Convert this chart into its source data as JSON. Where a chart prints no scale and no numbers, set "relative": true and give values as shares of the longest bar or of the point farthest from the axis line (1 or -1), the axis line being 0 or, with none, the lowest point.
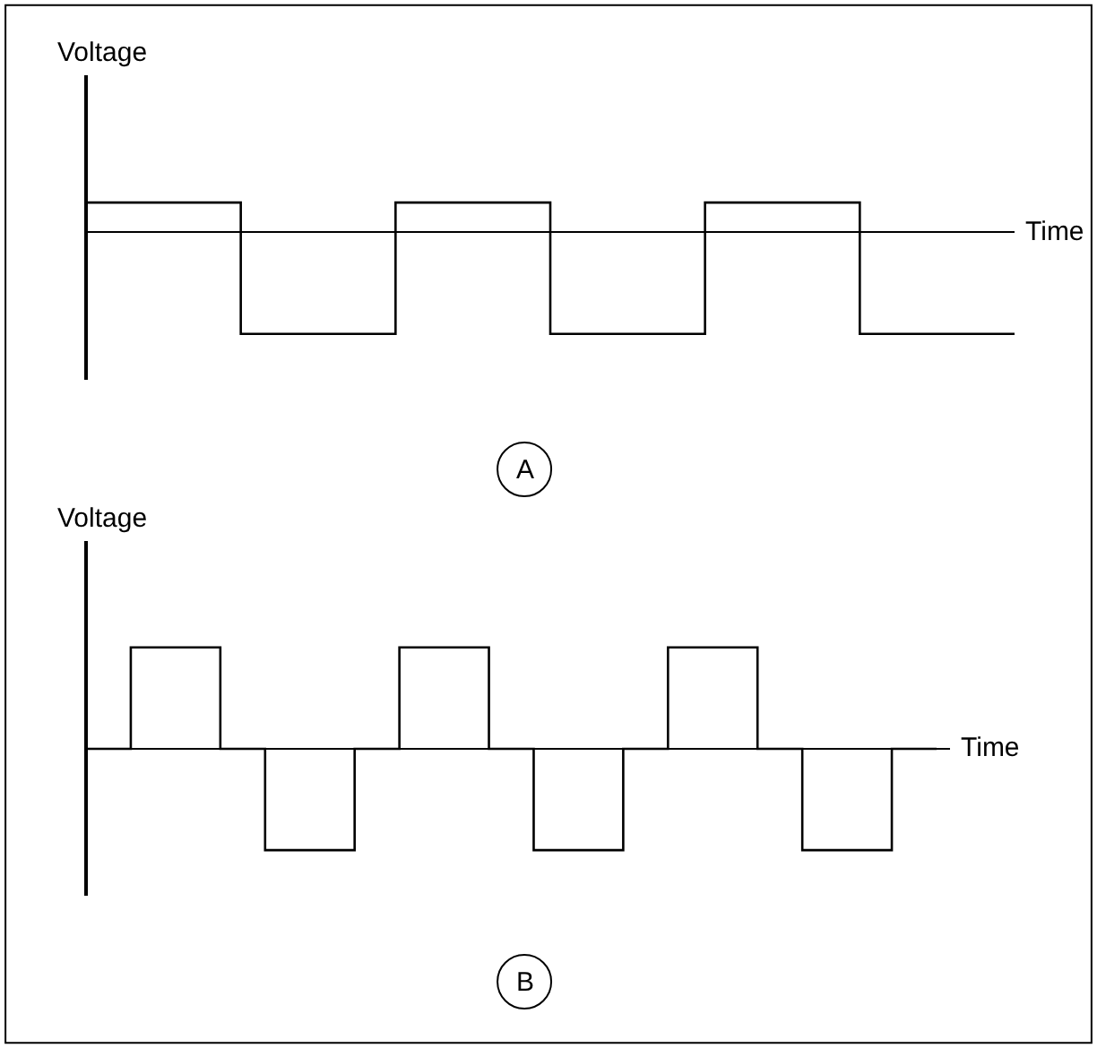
{
  "chart_data": [
    {
      "type": "step",
      "relative": true,
      "xlabel": "Time",
      "ylabel": "Voltage",
      "annotations": [
        "A"
      ],
      "grid": false,
      "legend": false,
      "marker": "none",
      "line_style": "solid",
      "color": "#000000",
      "categories": [
        null,
        null,
        null,
        null,
        null,
        null,
        null
      ],
      "values": [
        0.29,
        -1,
        0.29,
        -1,
        0.29,
        -1,
        -1
      ]
    },
    {
      "type": "step",
      "relative": true,
      "xlabel": "Time",
      "ylabel": "Voltage",
      "annotations": [
        "B"
      ],
      "grid": false,
      "legend": false,
      "marker": "none",
      "line_style": "solid",
      "color": "#000000",
      "categories": [
        null,
        null,
        null,
        null,
        null,
        null,
        null,
        null,
        null,
        null,
        null,
        null,
        null,
        null,
        null,
        null,
        null,
        null,
        null,
        null,
        null,
        null,
        null,
        null,
        null,
        null,
        null,
        null,
        null,
        null,
        null,
        null,
        null,
        null,
        null,
        null,
        null,
        null,
        null
      ],
      "values": [
        0,
        0,
        1,
        1,
        1,
        1,
        0,
        0,
        -1,
        -1,
        -1,
        -1,
        0,
        0,
        1,
        1,
        1,
        1,
        0,
        0,
        -1,
        -1,
        -1,
        -1,
        0,
        0,
        1,
        1,
        1,
        1,
        0,
        0,
        -1,
        -1,
        -1,
        -1,
        0,
        0,
        0
      ]
    }
  ]
}
